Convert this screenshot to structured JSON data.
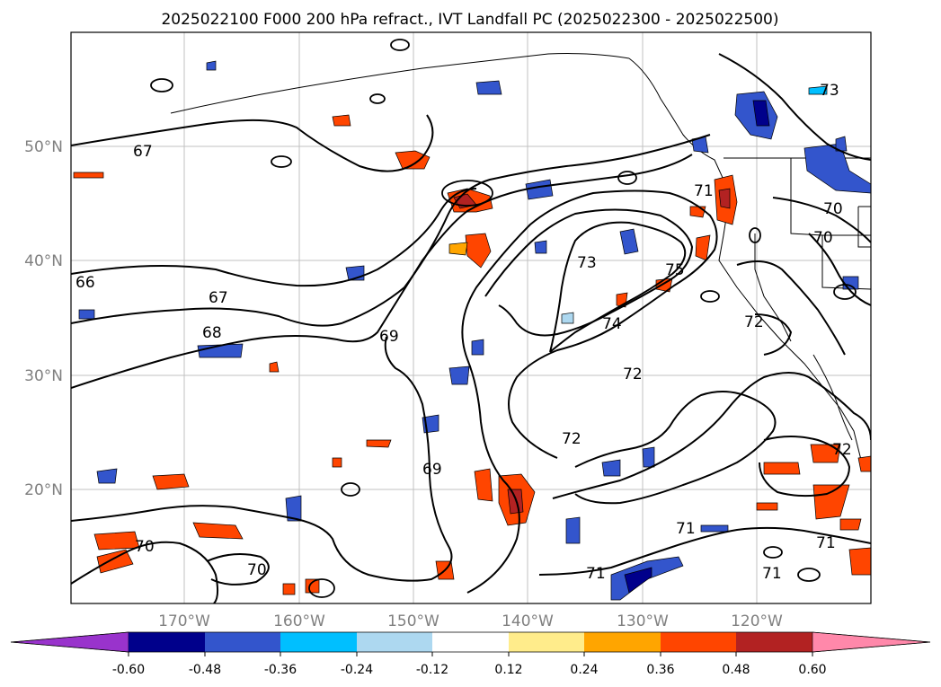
{
  "title": "2025022100 F000 200 hPa refract., IVT Landfall PC (2025022300 - 2025022500)",
  "axes": {
    "lon_ticks": [
      "170°W",
      "160°W",
      "150°W",
      "140°W",
      "130°W",
      "120°W"
    ],
    "lat_ticks": [
      "50°N",
      "40°N",
      "30°N",
      "20°N"
    ],
    "tick_color": "#808080"
  },
  "contour_labels": [
    "67",
    "68",
    "67",
    "69",
    "69",
    "70",
    "70",
    "71",
    "71",
    "71",
    "71",
    "72",
    "72",
    "72",
    "73",
    "74",
    "75",
    "71",
    "70",
    "72",
    "66",
    "70",
    "73"
  ],
  "colorbar": {
    "ticks": [
      "-0.60",
      "-0.48",
      "-0.36",
      "-0.24",
      "-0.12",
      "0.12",
      "0.24",
      "0.36",
      "0.48",
      "0.60"
    ],
    "colors": {
      "under": "#9933cc",
      "bins": [
        "#00008b",
        "#3355cc",
        "#00bfff",
        "#add8f0",
        "#ffffff",
        "#ffec8b",
        "#ffa500",
        "#ff4500",
        "#b22222"
      ],
      "over": "#ff88aa"
    }
  }
}
